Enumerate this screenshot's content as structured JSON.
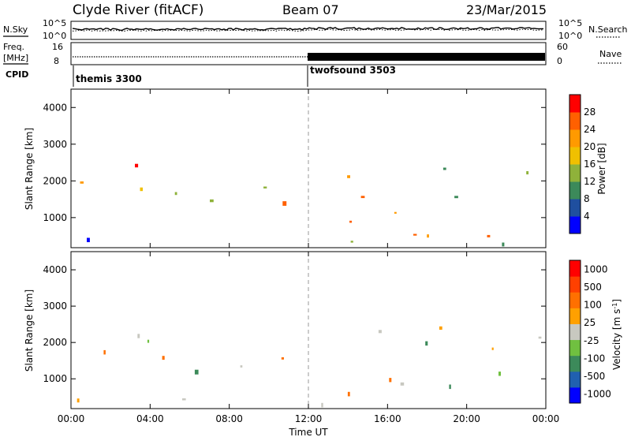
{
  "header": {
    "station": "Clyde River (fitACF)",
    "beam": "Beam 07",
    "date": "23/Mar/2015"
  },
  "top_panel": {
    "left_label": "N.Sky",
    "right_label": "N.Search",
    "left_ticks": [
      "10^5",
      "10^0"
    ],
    "right_ticks": [
      "10^5",
      "10^0"
    ]
  },
  "freq_panel": {
    "left_label_1": "Freq.",
    "left_label_2": "[MHz]",
    "right_label": "Nave",
    "left_ticks": [
      "16",
      "8"
    ],
    "right_ticks": [
      "60",
      "0"
    ]
  },
  "cpid_panel": {
    "label": "CPID",
    "modes": [
      "themis 3300",
      "twofsound 3503"
    ]
  },
  "colors": {
    "power": [
      "#0000ff",
      "#1f4f9f",
      "#3c8a5a",
      "#8fb23a",
      "#f0c000",
      "#ff9a00",
      "#ff6000",
      "#ff0000"
    ],
    "velocity": [
      "#0000ff",
      "#2060b0",
      "#3c8a5a",
      "#70c040",
      "#c8c8c0",
      "#ffa000",
      "#ff7000",
      "#ff4000",
      "#ff0000"
    ]
  },
  "chart_data": [
    {
      "type": "heatmap",
      "title": "",
      "xlabel": "",
      "ylabel": "Slant Range [km]",
      "xlim": [
        "00:00",
        "24:00"
      ],
      "ylim": [
        180,
        4500
      ],
      "x_ticks": [
        "00:00",
        "04:00",
        "08:00",
        "12:00",
        "16:00",
        "20:00",
        "00:00"
      ],
      "y_ticks": [
        1000,
        2000,
        3000,
        4000
      ],
      "colorbar": {
        "label": "Power [dB]",
        "ticks": [
          4,
          8,
          12,
          16,
          20,
          24,
          28
        ],
        "range": [
          0,
          32
        ]
      }
    },
    {
      "type": "heatmap",
      "title": "",
      "xlabel": "Time UT",
      "ylabel": "Slant Range [km]",
      "xlim": [
        "00:00",
        "24:00"
      ],
      "ylim": [
        180,
        4500
      ],
      "x_ticks": [
        "00:00",
        "04:00",
        "08:00",
        "12:00",
        "16:00",
        "20:00",
        "00:00"
      ],
      "y_ticks": [
        1000,
        2000,
        3000,
        4000
      ],
      "colorbar": {
        "label": "Velocity [m s^-1]",
        "ticks": [
          1000,
          500,
          100,
          25,
          -25,
          -100,
          -500,
          -1000
        ]
      }
    }
  ]
}
